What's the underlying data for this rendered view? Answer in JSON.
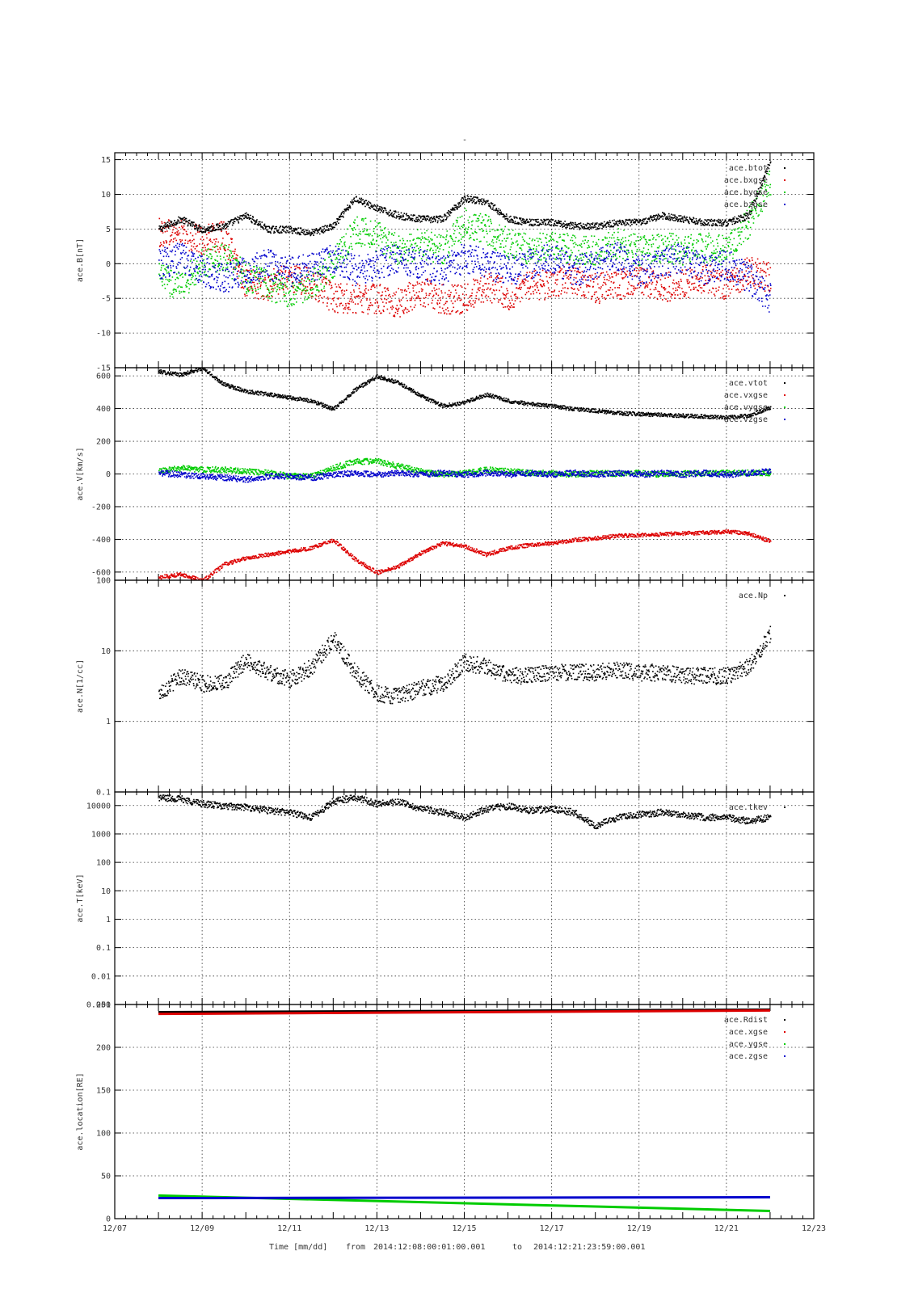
{
  "page_title": "-",
  "footer": {
    "x_label": "Time [mm/dd]",
    "range_from_label": "from",
    "range_from": "2014:12:08:00:01:00.001",
    "range_to_label": "to",
    "range_to": "2014:12:21:23:59:00.001"
  },
  "x_axis": {
    "ticks": [
      "12/07",
      "12/09",
      "12/11",
      "12/13",
      "12/15",
      "12/17",
      "12/19",
      "12/21",
      "12/23"
    ],
    "start": "2014-12-07",
    "end": "2014-12-23"
  },
  "colors": {
    "black": "#000000",
    "red": "#dd0000",
    "green": "#00cc00",
    "blue": "#0000cc"
  },
  "chart_data": [
    {
      "type": "scatter",
      "ylabel": "ace.B[nT]",
      "ylim": [
        -15,
        16
      ],
      "yscale": "linear",
      "yticks": [
        -15,
        -10,
        -5,
        0,
        5,
        10,
        15
      ],
      "ytick_labels": [
        "-15",
        "-10",
        "-5",
        "0",
        "5",
        "10",
        "15"
      ],
      "grid": true,
      "legend": "top-right",
      "x": [
        "12/08",
        "12/08 12h",
        "12/09",
        "12/09 12h",
        "12/10",
        "12/10 12h",
        "12/11",
        "12/11 12h",
        "12/12",
        "12/12 12h",
        "12/13",
        "12/13 12h",
        "12/14",
        "12/14 12h",
        "12/15",
        "12/15 12h",
        "12/16",
        "12/16 12h",
        "12/17",
        "12/17 12h",
        "12/18",
        "12/18 12h",
        "12/19",
        "12/19 12h",
        "12/20",
        "12/20 12h",
        "12/21",
        "12/21 12h",
        "12/22"
      ],
      "series": [
        {
          "name": "ace.btot",
          "color": "#000000",
          "values": [
            5,
            6.5,
            5,
            5.5,
            7,
            5,
            5,
            4.5,
            5.5,
            9.5,
            8,
            7,
            6.5,
            6.5,
            9.5,
            9,
            6.5,
            6,
            6,
            5.5,
            5.5,
            6,
            6,
            7,
            6.5,
            6,
            6,
            7,
            15
          ]
        },
        {
          "name": "ace.bxgse",
          "color": "#dd0000",
          "values": [
            4.5,
            4.5,
            3.5,
            4,
            -3,
            -3,
            -2,
            -2.5,
            -5,
            -5,
            -5,
            -5.5,
            -4,
            -5,
            -5,
            -3,
            -4.5,
            -3,
            -3,
            -2,
            -3.5,
            -3,
            -2,
            -3.5,
            -3,
            -2,
            -3,
            -1,
            -2
          ]
        },
        {
          "name": "ace.bygse",
          "color": "#00cc00",
          "values": [
            -2,
            -3,
            0,
            1,
            -2,
            -3,
            -4,
            -3,
            0,
            5,
            4,
            2,
            3,
            2,
            6,
            5,
            3,
            2,
            3,
            2,
            2,
            3,
            2,
            2.5,
            2,
            2.5,
            2,
            6,
            12
          ]
        },
        {
          "name": "ace.bzgse",
          "color": "#0000cc",
          "values": [
            0,
            1,
            -1,
            -2,
            -1,
            0,
            -1,
            -0.5,
            1,
            -1,
            0,
            1,
            0,
            -1,
            1,
            0,
            -1,
            0,
            1,
            -1,
            0,
            1,
            -1,
            0,
            1,
            -1,
            0,
            -2,
            -5
          ]
        }
      ]
    },
    {
      "type": "scatter",
      "ylabel": "ace.V[km/s]",
      "ylim": [
        -650,
        650
      ],
      "yscale": "linear",
      "yticks": [
        -600,
        -400,
        -200,
        0,
        200,
        400,
        600
      ],
      "ytick_labels": [
        "-600",
        "-400",
        "-200",
        "0",
        "200",
        "400",
        "600"
      ],
      "grid": true,
      "legend": "top-right",
      "x": [
        "12/08",
        "12/08 12h",
        "12/09",
        "12/09 12h",
        "12/10",
        "12/10 12h",
        "12/11",
        "12/11 12h",
        "12/12",
        "12/12 12h",
        "12/13",
        "12/13 12h",
        "12/14",
        "12/14 12h",
        "12/15",
        "12/15 12h",
        "12/16",
        "12/16 12h",
        "12/17",
        "12/17 12h",
        "12/18",
        "12/18 12h",
        "12/19",
        "12/19 12h",
        "12/20",
        "12/20 12h",
        "12/21",
        "12/21 12h",
        "12/22"
      ],
      "series": [
        {
          "name": "ace.vtot",
          "color": "#000000",
          "values": [
            630,
            610,
            650,
            550,
            510,
            490,
            470,
            450,
            400,
            520,
            600,
            560,
            480,
            420,
            440,
            490,
            450,
            430,
            420,
            400,
            390,
            375,
            370,
            365,
            360,
            355,
            350,
            360,
            410
          ]
        },
        {
          "name": "ace.vxgse",
          "color": "#dd0000",
          "values": [
            -630,
            -610,
            -650,
            -550,
            -510,
            -490,
            -470,
            -450,
            -400,
            -520,
            -600,
            -560,
            -480,
            -420,
            -440,
            -490,
            -450,
            -430,
            -420,
            -400,
            -390,
            -375,
            -370,
            -365,
            -360,
            -355,
            -350,
            -360,
            -410
          ]
        },
        {
          "name": "ace.vygse",
          "color": "#00cc00",
          "values": [
            20,
            40,
            30,
            30,
            20,
            10,
            -10,
            -10,
            40,
            80,
            80,
            50,
            20,
            0,
            10,
            30,
            20,
            10,
            10,
            0,
            10,
            5,
            10,
            0,
            10,
            5,
            10,
            10,
            10
          ]
        },
        {
          "name": "ace.vzgse",
          "color": "#0000cc",
          "values": [
            10,
            0,
            -10,
            -20,
            -30,
            -10,
            -10,
            -20,
            0,
            10,
            0,
            10,
            0,
            10,
            0,
            10,
            0,
            10,
            0,
            10,
            0,
            10,
            0,
            10,
            0,
            10,
            0,
            10,
            20
          ]
        }
      ]
    },
    {
      "type": "scatter",
      "ylabel": "ace.N[1/cc]",
      "ylim": [
        0.1,
        100
      ],
      "yscale": "log",
      "yticks": [
        0.1,
        1,
        10,
        100
      ],
      "ytick_labels": [
        "0.1",
        "1",
        "10",
        "100"
      ],
      "grid": true,
      "legend": "top-right",
      "x": [
        "12/08",
        "12/08 12h",
        "12/09",
        "12/09 12h",
        "12/10",
        "12/10 12h",
        "12/11",
        "12/11 12h",
        "12/12",
        "12/12 12h",
        "12/13",
        "12/13 12h",
        "12/14",
        "12/14 12h",
        "12/15",
        "12/15 12h",
        "12/16",
        "12/16 12h",
        "12/17",
        "12/17 12h",
        "12/18",
        "12/18 12h",
        "12/19",
        "12/19 12h",
        "12/20",
        "12/20 12h",
        "12/21",
        "12/21 12h",
        "12/22"
      ],
      "series": [
        {
          "name": "ace.Np",
          "color": "#000000",
          "values": [
            2.5,
            4.5,
            3.5,
            3.5,
            7.5,
            5,
            4,
            6,
            15,
            5,
            2.5,
            2.3,
            3,
            3.5,
            7,
            6,
            4.5,
            4.5,
            5,
            5,
            5,
            5.5,
            5,
            5,
            4.5,
            4.5,
            4.5,
            6,
            18
          ]
        }
      ]
    },
    {
      "type": "scatter",
      "ylabel": "ace.T[keV]",
      "ylim": [
        0.001,
        30000
      ],
      "yscale": "log",
      "yticks": [
        0.001,
        0.01,
        0.1,
        1,
        10,
        100,
        1000,
        10000
      ],
      "ytick_labels": [
        "0.001",
        "0.01",
        "0.1",
        "1",
        "10",
        "100",
        "1000",
        "10000"
      ],
      "grid": true,
      "legend": "top-right",
      "x": [
        "12/08",
        "12/08 12h",
        "12/09",
        "12/09 12h",
        "12/10",
        "12/10 12h",
        "12/11",
        "12/11 12h",
        "12/12",
        "12/12 12h",
        "12/13",
        "12/13 12h",
        "12/14",
        "12/14 12h",
        "12/15",
        "12/15 12h",
        "12/16",
        "12/16 12h",
        "12/17",
        "12/17 12h",
        "12/18",
        "12/18 12h",
        "12/19",
        "12/19 12h",
        "12/20",
        "12/20 12h",
        "12/21",
        "12/21 12h",
        "12/22"
      ],
      "series": [
        {
          "name": "ace.tkev",
          "color": "#000000",
          "values": [
            20000,
            18000,
            12000,
            10000,
            9000,
            7000,
            6000,
            4000,
            15000,
            20000,
            12000,
            14000,
            8000,
            6000,
            4000,
            8000,
            10000,
            7000,
            8000,
            6000,
            2000,
            4000,
            5000,
            6000,
            5000,
            4000,
            4000,
            3000,
            4000
          ]
        }
      ]
    },
    {
      "type": "line",
      "ylabel": "ace.location[RE]",
      "ylim": [
        0,
        250
      ],
      "yscale": "linear",
      "yticks": [
        0,
        50,
        100,
        150,
        200,
        250
      ],
      "ytick_labels": [
        "0",
        "50",
        "100",
        "150",
        "200",
        "250"
      ],
      "grid": true,
      "legend": "top-right",
      "x": [
        "12/08",
        "12/22"
      ],
      "series": [
        {
          "name": "ace.Rdist",
          "color": "#000000",
          "values": [
            241,
            244
          ]
        },
        {
          "name": "ace.xgse",
          "color": "#dd0000",
          "values": [
            239,
            243
          ]
        },
        {
          "name": "ace.ygse",
          "color": "#00cc00",
          "values": [
            27,
            9
          ]
        },
        {
          "name": "ace.zgse",
          "color": "#0000cc",
          "values": [
            24,
            25
          ]
        }
      ]
    }
  ]
}
